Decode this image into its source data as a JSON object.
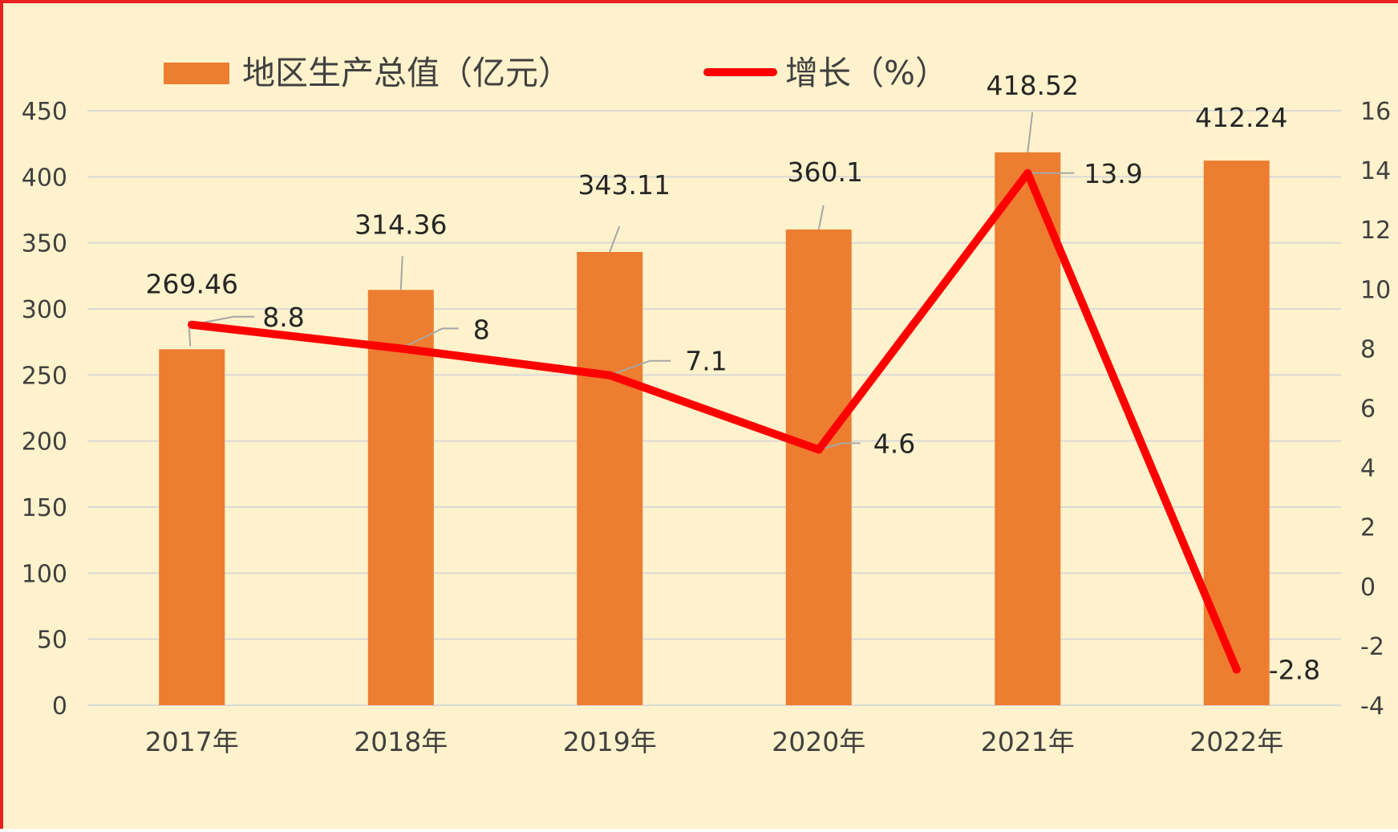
{
  "chart_data": {
    "type": "bar+line",
    "categories": [
      "2017年",
      "2018年",
      "2019年",
      "2020年",
      "2021年",
      "2022年"
    ],
    "series": [
      {
        "name": "地区生产总值（亿元）",
        "type": "bar",
        "axis": "left",
        "values": [
          269.46,
          314.36,
          343.11,
          360.1,
          418.52,
          412.24
        ],
        "labels": [
          "269.46",
          "314.36",
          "343.11",
          "360.1",
          "418.52",
          "412.24"
        ],
        "color": "#ed7d31"
      },
      {
        "name": "增长（%）",
        "type": "line",
        "axis": "right",
        "values": [
          8.8,
          8,
          7.1,
          4.6,
          13.9,
          -2.8
        ],
        "labels": [
          "8.8",
          "8",
          "7.1",
          "4.6",
          "13.9",
          "-2.8"
        ],
        "color": "#ff0000"
      }
    ],
    "y_left": {
      "range": [
        0,
        450
      ],
      "ticks": [
        "0",
        "50",
        "100",
        "150",
        "200",
        "250",
        "300",
        "350",
        "400",
        "450"
      ]
    },
    "y_right": {
      "range": [
        -4,
        16
      ],
      "ticks": [
        "-4",
        "-2",
        "0",
        "2",
        "4",
        "6",
        "8",
        "10",
        "12",
        "14",
        "16"
      ]
    },
    "grid": true,
    "legend": "top-left",
    "colors": {
      "background": "#fff2cc",
      "frame": "#e8221e",
      "gridline": "#d9d9d9",
      "leader_line": "#a6a6a6"
    }
  }
}
